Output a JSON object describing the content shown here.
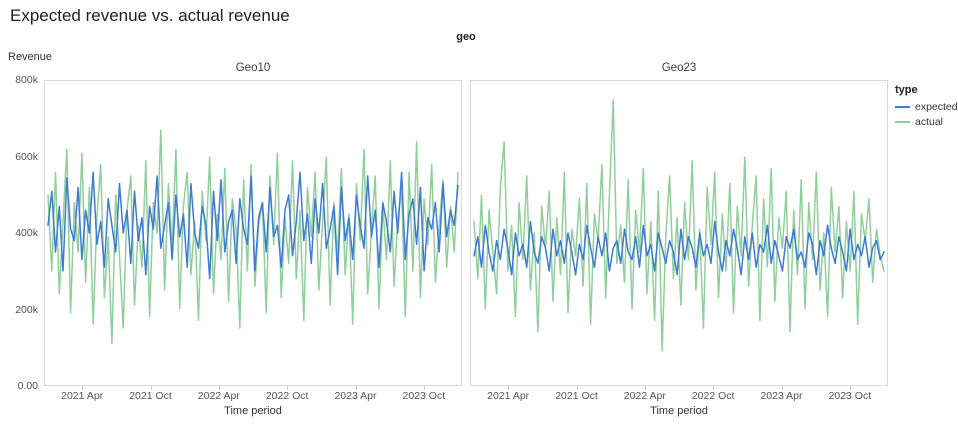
{
  "page": {
    "title": "Expected revenue vs. actual revenue"
  },
  "chart_data": {
    "type": "line",
    "title": "Expected revenue vs. actual revenue",
    "facet_field_label": "geo",
    "ylabel": "Revenue",
    "xlabel": "Time period",
    "units": "thousands (k) of revenue",
    "ylim": [
      0,
      800
    ],
    "y_ticks": [
      {
        "v": 0,
        "label": "0.00"
      },
      {
        "v": 200,
        "label": "200k"
      },
      {
        "v": 400,
        "label": "400k"
      },
      {
        "v": 600,
        "label": "600k"
      },
      {
        "v": 800,
        "label": "800k"
      }
    ],
    "x_months_total": 36,
    "x_ticks": [
      {
        "month": 3,
        "label": "2021 Apr"
      },
      {
        "month": 9,
        "label": "2021 Oct"
      },
      {
        "month": 15,
        "label": "2022 Apr"
      },
      {
        "month": 21,
        "label": "2022 Oct"
      },
      {
        "month": 27,
        "label": "2023 Apr"
      },
      {
        "month": 33,
        "label": "2023 Oct"
      }
    ],
    "legend": {
      "title": "type",
      "entries": [
        {
          "name": "expected",
          "color": "#3d7bd6"
        },
        {
          "name": "actual",
          "color": "#90cf9b"
        }
      ]
    },
    "panels": [
      {
        "title": "Geo10",
        "series": [
          {
            "name": "expected",
            "values": [
              420,
              510,
              350,
              470,
              300,
              545,
              410,
              380,
              520,
              330,
              460,
              400,
              560,
              370,
              430,
              310,
              490,
              420,
              350,
              530,
              400,
              460,
              320,
              510,
              380,
              440,
              290,
              470,
              410,
              550,
              360,
              420,
              480,
              330,
              500,
              390,
              450,
              310,
              530,
              400,
              360,
              470,
              420,
              280,
              510,
              380,
              540,
              350,
              430,
              460,
              320,
              490,
              410,
              370,
              550,
              300,
              440,
              480,
              350,
              520,
              390,
              420,
              310,
              460,
              500,
              340,
              430,
              560,
              380,
              450,
              320,
              490,
              400,
              530,
              360,
              410,
              470,
              290,
              520,
              380,
              440,
              330,
              500,
              420,
              360,
              550,
              390,
              460,
              310,
              480,
              430,
              350,
              510,
              400,
              560,
              330,
              450,
              490,
              370,
              520,
              300,
              440,
              410,
              480,
              350,
              530,
              390,
              460,
              420,
              525
            ]
          },
          {
            "name": "actual",
            "values": [
              500,
              300,
              560,
              240,
              430,
              620,
              190,
              480,
              350,
              610,
              270,
              520,
              160,
              440,
              580,
              230,
              390,
              110,
              500,
              340,
              150,
              460,
              550,
              210,
              420,
              310,
              590,
              180,
              480,
              400,
              670,
              250,
              530,
              360,
              620,
              200,
              470,
              560,
              290,
              430,
              170,
              510,
              380,
              600,
              240,
              450,
              330,
              570,
              220,
              490,
              410,
              150,
              540,
              300,
              580,
              260,
              420,
              480,
              190,
              550,
              370,
              610,
              230,
              440,
              320,
              590,
              280,
              460,
              170,
              520,
              390,
              560,
              250,
              430,
              600,
              210,
              480,
              340,
              570,
              290,
              450,
              160,
              530,
              380,
              620,
              240,
              410,
              550,
              200,
              470,
              330,
              590,
              260,
              440,
              510,
              180,
              560,
              300,
              640,
              230,
              490,
              370,
              580,
              270,
              420,
              540,
              310,
              470,
              350,
              560
            ]
          }
        ]
      },
      {
        "title": "Geo23",
        "series": [
          {
            "name": "expected",
            "values": [
              340,
              390,
              310,
              420,
              350,
              300,
              380,
              330,
              410,
              360,
              290,
              400,
              340,
              370,
              310,
              430,
              350,
              320,
              390,
              360,
              300,
              410,
              340,
              380,
              320,
              400,
              350,
              290,
              370,
              330,
              420,
              360,
              310,
              390,
              340,
              400,
              300,
              360,
              380,
              320,
              410,
              350,
              330,
              390,
              310,
              420,
              340,
              370,
              300,
              400,
              360,
              320,
              380,
              350,
              290,
              410,
              330,
              390,
              360,
              310,
              400,
              340,
              370,
              320,
              430,
              350,
              300,
              380,
              340,
              410,
              360,
              290,
              390,
              330,
              400,
              310,
              370,
              350,
              420,
              320,
              380,
              340,
              300,
              390,
              360,
              410,
              330,
              350,
              310,
              400,
              370,
              290,
              380,
              340,
              420,
              360,
              320,
              390,
              350,
              300,
              410,
              330,
              370,
              340,
              390,
              310,
              360,
              380,
              330,
              350
            ]
          },
          {
            "name": "actual",
            "values": [
              430,
              280,
              500,
              200,
              460,
              350,
              240,
              520,
              640,
              300,
              420,
              180,
              480,
              330,
              550,
              250,
              400,
              140,
              470,
              360,
              510,
              220,
              440,
              290,
              560,
              190,
              410,
              340,
              490,
              260,
              530,
              160,
              450,
              380,
              580,
              230,
              500,
              750,
              320,
              420,
              270,
              540,
              200,
              460,
              350,
              570,
              240,
              430,
              170,
              510,
              90,
              390,
              550,
              280,
              440,
              210,
              480,
              330,
              590,
              250,
              410,
              150,
              520,
              370,
              560,
              230,
              450,
              300,
              530,
              190,
              470,
              340,
              600,
              260,
              420,
              550,
              170,
              490,
              310,
              570,
              220,
              440,
              360,
              510,
              140,
              460,
              290,
              540,
              200,
              480,
              330,
              560,
              250,
              400,
              180,
              520,
              350,
              470,
              230,
              430,
              300,
              510,
              160,
              450,
              380,
              490,
              270,
              410,
              340,
              300
            ]
          }
        ]
      }
    ]
  }
}
